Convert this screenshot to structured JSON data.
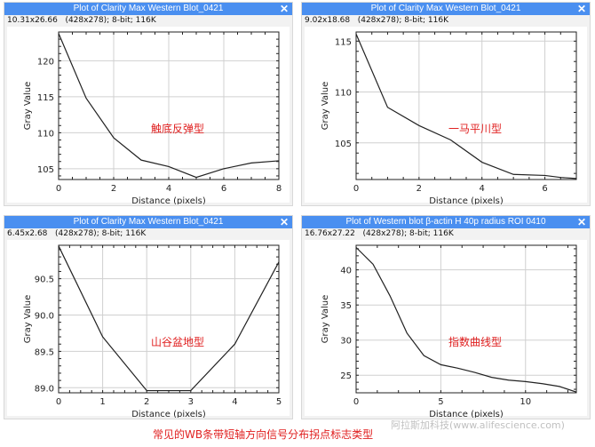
{
  "windows": [
    {
      "title": "Plot of Clarity Max Western Blot_0421",
      "info": "10.31x26.66   (428x278); 8-bit; 116K",
      "close_icon": "close-icon"
    },
    {
      "title": "Plot of Clarity Max Western Blot_0421",
      "info": "9.02x18.68   (428x278); 8-bit; 116K",
      "close_icon": "close-icon"
    },
    {
      "title": "Plot of Clarity Max Western Blot_0421",
      "info": "6.45x2.68   (428x278); 8-bit; 116K",
      "close_icon": "close-icon"
    },
    {
      "title": "Plot of Western blot β-actin H 40p radius ROI 0410",
      "info": "16.76x27.22   (428x278); 8-bit; 116K",
      "close_icon": "close-icon"
    }
  ],
  "caption": "常见的WB条带短轴方向信号分布拐点标志类型",
  "watermark": "阿拉斯加科技(www.alifescience.com)",
  "colors": {
    "titlebar": "#4a8ff0",
    "annotation": "#e02020",
    "line": "#222222"
  },
  "chart_data": [
    {
      "type": "line",
      "title": "Plot of Clarity Max Western Blot_0421",
      "xlabel": "Distance (pixels)",
      "ylabel": "Gray Value",
      "annotation": "触底反弹型",
      "xlim": [
        0,
        8
      ],
      "ylim": [
        103.5,
        124
      ],
      "xticks": [
        0,
        2,
        4,
        6,
        8
      ],
      "yticks": [
        105,
        110,
        115,
        120
      ],
      "x": [
        0,
        1,
        2,
        3,
        4,
        5,
        6,
        7,
        8
      ],
      "y": [
        123.8,
        114.8,
        109.3,
        106.2,
        105.3,
        103.8,
        105.0,
        105.8,
        106.1
      ],
      "grid": true
    },
    {
      "type": "line",
      "title": "Plot of Clarity Max Western Blot_0421",
      "xlabel": "Distance (pixels)",
      "ylabel": "Gray Value",
      "annotation": "一马平川型",
      "xlim": [
        0,
        7
      ],
      "ylim": [
        101.4,
        115.9
      ],
      "xticks": [
        0,
        2,
        4,
        6
      ],
      "yticks": [
        105,
        110,
        115
      ],
      "x": [
        0,
        1,
        2,
        3,
        4,
        5,
        6,
        6.5,
        7
      ],
      "y": [
        115.7,
        108.5,
        106.7,
        105.3,
        103.1,
        101.9,
        101.8,
        101.6,
        101.5
      ],
      "grid": true
    },
    {
      "type": "line",
      "title": "Plot of Clarity Max Western Blot_0421",
      "xlabel": "Distance (pixels)",
      "ylabel": "Gray Value",
      "annotation": "山谷盆地型",
      "xlim": [
        0,
        5
      ],
      "ylim": [
        88.93,
        90.96
      ],
      "xticks": [
        0,
        1,
        2,
        3,
        4,
        5
      ],
      "yticks": [
        89.0,
        89.5,
        90.0,
        90.5
      ],
      "x": [
        0,
        1,
        2,
        3,
        4,
        5
      ],
      "y": [
        90.95,
        89.7,
        88.96,
        88.96,
        89.6,
        90.73
      ],
      "grid": true
    },
    {
      "type": "line",
      "title": "Plot of Western blot β-actin H 40p radius ROI 0410",
      "xlabel": "Distance (pixels)",
      "ylabel": "Gray Value",
      "annotation": "指数曲线型",
      "xlim": [
        0,
        13
      ],
      "ylim": [
        22.5,
        43.5
      ],
      "xticks": [
        0,
        5,
        10
      ],
      "yticks": [
        25,
        30,
        35,
        40
      ],
      "x": [
        0,
        1,
        2,
        3,
        4,
        5,
        6,
        7,
        8,
        9,
        10,
        11,
        12,
        13
      ],
      "y": [
        43.2,
        40.8,
        36.3,
        31.0,
        27.8,
        26.5,
        26.0,
        25.4,
        24.7,
        24.3,
        24.1,
        23.8,
        23.4,
        22.6
      ],
      "grid": true
    }
  ]
}
